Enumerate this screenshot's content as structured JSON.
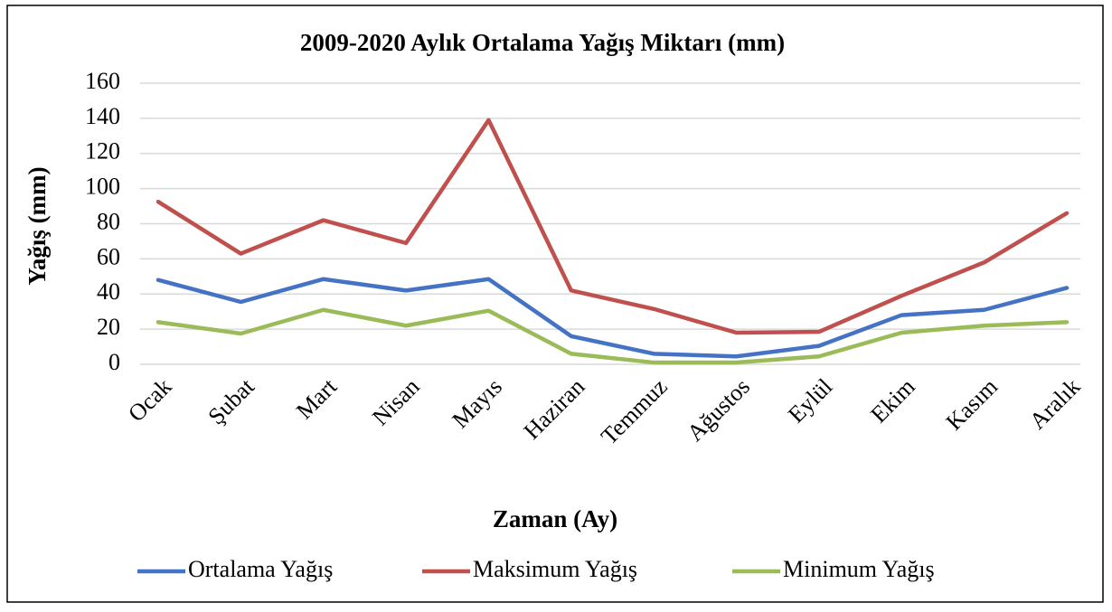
{
  "chart_data": {
    "type": "line",
    "title": "2009-2020 Aylık Ortalama Yağış Miktarı (mm)",
    "x_label": "Zaman (Ay)",
    "y_label": "Yağış (mm)",
    "categories": [
      "Ocak",
      "Şubat",
      "Mart",
      "Nisan",
      "Mayıs",
      "Haziran",
      "Temmuz",
      "Ağustos",
      "Eylül",
      "Ekim",
      "Kasım",
      "Aralık"
    ],
    "series": [
      {
        "name": "Ortalama Yağış",
        "color": "#4472c4",
        "values": [
          48,
          35.5,
          48.5,
          42,
          48.5,
          16,
          6,
          4.5,
          10.5,
          28,
          31,
          43.5
        ]
      },
      {
        "name": "Maksimum Yağış",
        "color": "#c0504d",
        "values": [
          92.5,
          63,
          82,
          69,
          139,
          42,
          31.5,
          18,
          18.5,
          39,
          58,
          86
        ]
      },
      {
        "name": "Minimum Yağış",
        "color": "#9bbb59",
        "values": [
          24,
          17.5,
          31,
          22,
          30.5,
          6,
          1,
          1,
          4.5,
          18,
          22,
          24
        ]
      }
    ],
    "ylim": [
      0,
      160
    ],
    "yticks": [
      0,
      20,
      40,
      60,
      80,
      100,
      120,
      140,
      160
    ],
    "grid": true,
    "legend": "bottom"
  }
}
